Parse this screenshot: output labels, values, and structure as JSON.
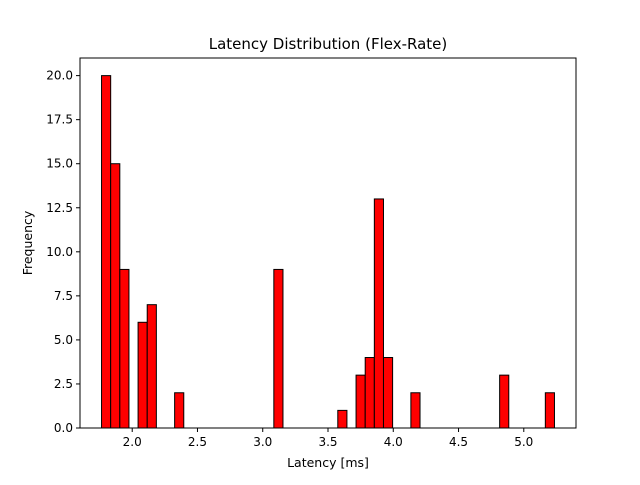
{
  "chart_data": {
    "type": "bar",
    "title": "Latency Distribution (Flex-Rate)",
    "xlabel": "Latency [ms]",
    "ylabel": "Frequency",
    "xlim": [
      1.6,
      5.4
    ],
    "ylim": [
      0,
      21
    ],
    "bin_width": 0.07,
    "bars": [
      {
        "x": 1.8,
        "y": 20
      },
      {
        "x": 1.87,
        "y": 15
      },
      {
        "x": 1.94,
        "y": 9
      },
      {
        "x": 2.08,
        "y": 6
      },
      {
        "x": 2.15,
        "y": 7
      },
      {
        "x": 2.36,
        "y": 2
      },
      {
        "x": 3.12,
        "y": 9
      },
      {
        "x": 3.61,
        "y": 1
      },
      {
        "x": 3.75,
        "y": 3
      },
      {
        "x": 3.82,
        "y": 4
      },
      {
        "x": 3.89,
        "y": 13
      },
      {
        "x": 3.96,
        "y": 4
      },
      {
        "x": 4.17,
        "y": 2
      },
      {
        "x": 4.85,
        "y": 3
      },
      {
        "x": 5.2,
        "y": 2
      }
    ],
    "xticks": [
      2.0,
      2.5,
      3.0,
      3.5,
      4.0,
      4.5,
      5.0
    ],
    "xtick_labels": [
      "2.0",
      "2.5",
      "3.0",
      "3.5",
      "4.0",
      "4.5",
      "5.0"
    ],
    "yticks": [
      0.0,
      2.5,
      5.0,
      7.5,
      10.0,
      12.5,
      15.0,
      17.5,
      20.0
    ],
    "ytick_labels": [
      "0.0",
      "2.5",
      "5.0",
      "7.5",
      "10.0",
      "12.5",
      "15.0",
      "17.5",
      "20.0"
    ],
    "grid": false,
    "bar_color": "#ff0000",
    "edge_color": "#000000"
  }
}
